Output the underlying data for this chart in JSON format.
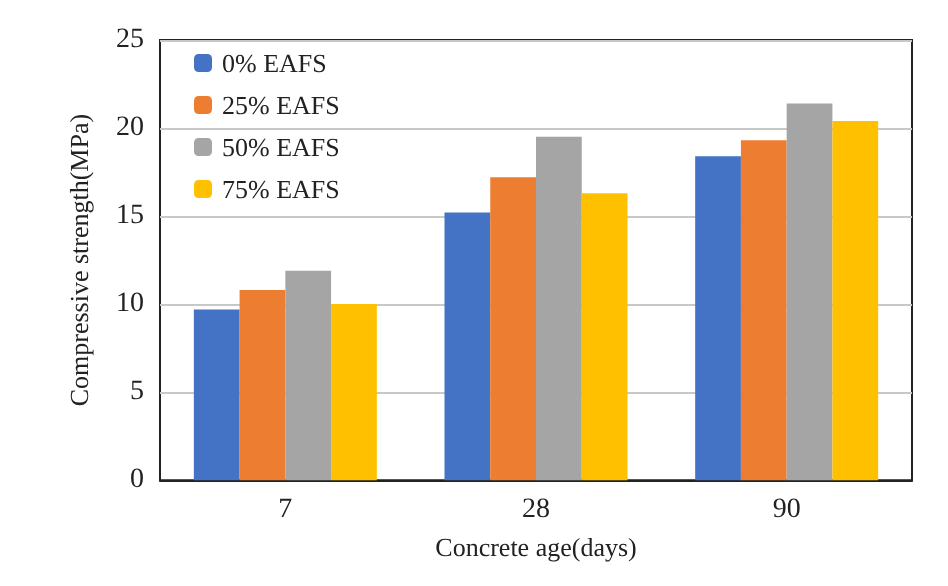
{
  "chart_data": {
    "type": "bar",
    "xlabel": "Concrete age(days)",
    "ylabel": "Compressive strength(MPa)",
    "categories": [
      "7",
      "28",
      "90"
    ],
    "series": [
      {
        "name": "0% EAFS",
        "color": "#4472c4",
        "values": [
          9.7,
          15.2,
          18.4
        ]
      },
      {
        "name": "25% EAFS",
        "color": "#ed7d31",
        "values": [
          10.8,
          17.2,
          19.3
        ]
      },
      {
        "name": "50% EAFS",
        "color": "#a5a5a5",
        "values": [
          11.9,
          19.5,
          21.4
        ]
      },
      {
        "name": "75% EAFS",
        "color": "#ffc000",
        "values": [
          10,
          16.3,
          20.4
        ]
      }
    ],
    "ylim": [
      0,
      25
    ],
    "yticks": [
      0,
      5,
      10,
      15,
      20,
      25
    ],
    "grid": "y",
    "legend": "top left"
  }
}
